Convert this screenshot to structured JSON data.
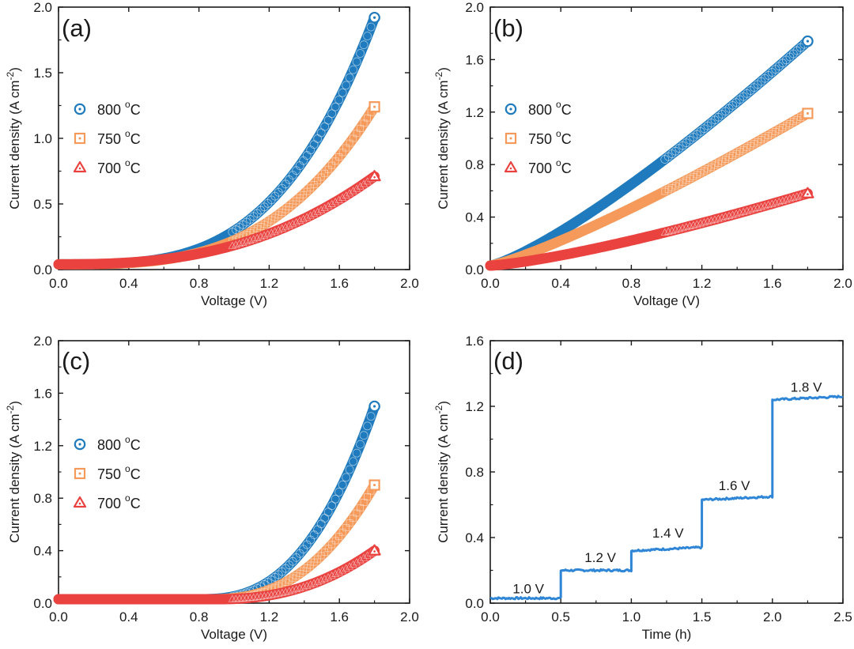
{
  "colors": {
    "blue": "#1f7bbd",
    "orange": "#f59a5a",
    "red": "#e9423f",
    "axis": "#1a1a1a",
    "step_line": "#2f86d6"
  },
  "chart_data": [
    {
      "type": "scatter",
      "panel_label": "(a)",
      "xlabel": "Voltage (V)",
      "ylabel_main": "Current density (A cm",
      "ylabel_sup": "-2",
      "ylabel_close": ")",
      "xlim": [
        0,
        2.0
      ],
      "ylim": [
        0,
        2.0
      ],
      "xticks": [
        "0.0",
        "0.4",
        "0.8",
        "1.2",
        "1.6",
        "2.0"
      ],
      "yticks": [
        "0.0",
        "0.5",
        "1.0",
        "1.5",
        "2.0"
      ],
      "ytick_values": [
        0,
        0.5,
        1.0,
        1.5,
        2.0
      ],
      "series": [
        {
          "name": "800 °C",
          "label_main": "800 ",
          "label_sup": "o",
          "label_unit": "C",
          "marker": "circle",
          "color": "blue",
          "end": 1.92,
          "shape": "power",
          "k": 3.4
        },
        {
          "name": "750 °C",
          "label_main": "750 ",
          "label_sup": "o",
          "label_unit": "C",
          "marker": "square",
          "color": "orange",
          "end": 1.24,
          "shape": "power",
          "k": 3.2
        },
        {
          "name": "700 °C",
          "label_main": "700 ",
          "label_sup": "o",
          "label_unit": "C",
          "marker": "triangle",
          "color": "red",
          "end": 0.71,
          "shape": "power",
          "k": 2.6
        }
      ],
      "start_value": 0.04,
      "x_start": 0.0,
      "x_end": 1.8
    },
    {
      "type": "scatter",
      "panel_label": "(b)",
      "xlabel": "Voltage (V)",
      "ylabel_main": "Current density (A cm",
      "ylabel_sup": "-2",
      "ylabel_close": ")",
      "xlim": [
        0,
        2.0
      ],
      "ylim": [
        0,
        2.0
      ],
      "xticks": [
        "0.0",
        "0.4",
        "0.8",
        "1.2",
        "1.6",
        "2.0"
      ],
      "yticks": [
        "0.0",
        "0.4",
        "0.8",
        "1.2",
        "1.6",
        "2.0"
      ],
      "ytick_values": [
        0,
        0.4,
        0.8,
        1.2,
        1.6,
        2.0
      ],
      "series": [
        {
          "name": "800 °C",
          "label_main": "800 ",
          "label_sup": "o",
          "label_unit": "C",
          "marker": "circle",
          "color": "blue",
          "end": 1.74,
          "shape": "power",
          "k": 1.25
        },
        {
          "name": "750 °C",
          "label_main": "750 ",
          "label_sup": "o",
          "label_unit": "C",
          "marker": "square",
          "color": "orange",
          "end": 1.19,
          "shape": "power",
          "k": 1.2
        },
        {
          "name": "700 °C",
          "label_main": "700 ",
          "label_sup": "o",
          "label_unit": "C",
          "marker": "triangle",
          "color": "red",
          "end": 0.58,
          "shape": "power",
          "k": 1.3
        }
      ],
      "start_value": 0.03,
      "x_start": 0.0,
      "x_end": 1.8
    },
    {
      "type": "scatter",
      "panel_label": "(c)",
      "xlabel": "Voltage (V)",
      "ylabel_main": "Current density (A cm",
      "ylabel_sup": "-2",
      "ylabel_close": ")",
      "xlim": [
        0,
        2.0
      ],
      "ylim": [
        0,
        2.0
      ],
      "xticks": [
        "0.0",
        "0.4",
        "0.8",
        "1.2",
        "1.6",
        "2.0"
      ],
      "yticks": [
        "0.0",
        "0.4",
        "0.8",
        "1.2",
        "1.6",
        "2.0"
      ],
      "ytick_values": [
        0,
        0.4,
        0.8,
        1.2,
        1.6,
        2.0
      ],
      "series": [
        {
          "name": "800 °C",
          "label_main": "800 ",
          "label_sup": "o",
          "label_unit": "C",
          "marker": "circle",
          "color": "blue",
          "end": 1.5,
          "shape": "onset",
          "onset": 0.8,
          "k": 2.6
        },
        {
          "name": "750 °C",
          "label_main": "750 ",
          "label_sup": "o",
          "label_unit": "C",
          "marker": "square",
          "color": "orange",
          "end": 0.9,
          "shape": "onset",
          "onset": 0.85,
          "k": 2.5
        },
        {
          "name": "700 °C",
          "label_main": "700 ",
          "label_sup": "o",
          "label_unit": "C",
          "marker": "triangle",
          "color": "red",
          "end": 0.4,
          "shape": "onset",
          "onset": 0.9,
          "k": 2.3
        }
      ],
      "start_value": 0.03,
      "x_start": 0.0,
      "x_end": 1.8
    },
    {
      "type": "line",
      "panel_label": "(d)",
      "xlabel": "Time (h)",
      "ylabel_main": "Current density (A cm",
      "ylabel_sup": "-2",
      "ylabel_close": ")",
      "xlim": [
        0,
        2.5
      ],
      "ylim": [
        0,
        1.6
      ],
      "xticks": [
        "0.0",
        "0.5",
        "1.0",
        "1.5",
        "2.0",
        "2.5"
      ],
      "xtick_values": [
        0,
        0.5,
        1.0,
        1.5,
        2.0,
        2.5
      ],
      "yticks": [
        "0.0",
        "0.4",
        "0.8",
        "1.2",
        "1.6"
      ],
      "ytick_values": [
        0,
        0.4,
        0.8,
        1.2,
        1.6
      ],
      "steps": [
        {
          "label": "1.0 V",
          "t0": 0.0,
          "t1": 0.5,
          "value": 0.03,
          "label_x": 0.27,
          "label_y": 0.06
        },
        {
          "label": "1.2 V",
          "t0": 0.5,
          "t1": 1.0,
          "value": 0.2,
          "label_x": 0.78,
          "label_y": 0.25
        },
        {
          "label": "1.4 V",
          "t0": 1.0,
          "t1": 1.5,
          "value": 0.32,
          "label_x": 1.26,
          "label_y": 0.4
        },
        {
          "label": "1.6 V",
          "t0": 1.5,
          "t1": 2.0,
          "value": 0.63,
          "label_x": 1.73,
          "label_y": 0.69
        },
        {
          "label": "1.8 V",
          "t0": 2.0,
          "t1": 2.5,
          "value": 1.24,
          "label_x": 2.24,
          "label_y": 1.29
        }
      ]
    }
  ]
}
